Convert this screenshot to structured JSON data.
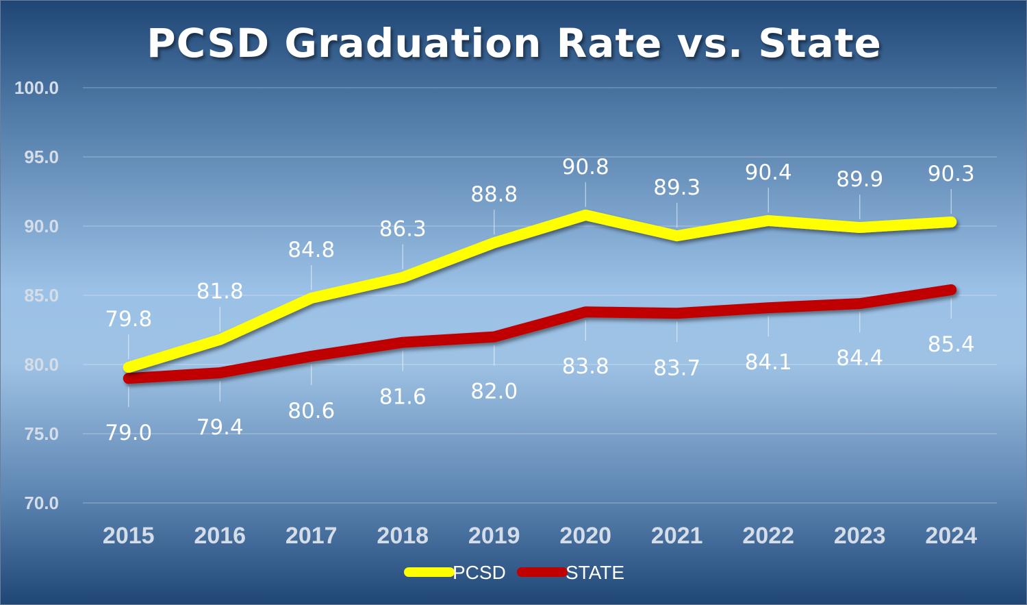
{
  "chart_data": {
    "type": "line",
    "title": "PCSD Graduation Rate vs. State",
    "xlabel": "",
    "ylabel": "",
    "categories": [
      "2015",
      "2016",
      "2017",
      "2018",
      "2019",
      "2020",
      "2021",
      "2022",
      "2023",
      "2024"
    ],
    "series": [
      {
        "name": "PCSD",
        "color": "#ffff00",
        "values": [
          79.8,
          81.8,
          84.8,
          86.3,
          88.8,
          90.8,
          89.3,
          90.4,
          89.9,
          90.3
        ],
        "labels": [
          "79.8",
          "81.8",
          "84.8",
          "86.3",
          "88.8",
          "90.8",
          "89.3",
          "90.4",
          "89.9",
          "90.3"
        ],
        "label_position": "above"
      },
      {
        "name": "STATE",
        "color": "#c00000",
        "values": [
          79.0,
          79.4,
          80.6,
          81.6,
          82.0,
          83.8,
          83.7,
          84.1,
          84.4,
          85.4
        ],
        "labels": [
          "79.0",
          "79.4",
          "80.6",
          "81.6",
          "82.0",
          "83.8",
          "83.7",
          "84.1",
          "84.4",
          "85.4"
        ],
        "label_position": "below"
      }
    ],
    "ylim": [
      70.0,
      100.0
    ],
    "yticks": [
      "70.0",
      "75.0",
      "80.0",
      "85.0",
      "90.0",
      "95.0",
      "100.0"
    ],
    "grid": true,
    "legend": "bottom-center",
    "background_color": "#9bc1e6"
  }
}
